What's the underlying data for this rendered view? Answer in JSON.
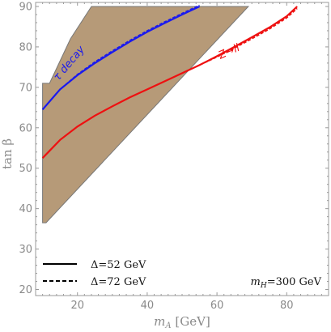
{
  "chart_data": {
    "type": "line",
    "title": "",
    "xlabel": "m_A [GeV]",
    "xlabel_main": "m",
    "xlabel_sub": "A",
    "xlabel_unit": " [GeV]",
    "ylabel": "tan β",
    "xlim": [
      8,
      92
    ],
    "ylim": [
      18.5,
      91
    ],
    "xticks": [
      20,
      40,
      60,
      80
    ],
    "yticks": [
      20,
      30,
      40,
      50,
      60,
      70,
      80,
      90
    ],
    "grid": false,
    "legend_position": "bottom-left",
    "colors": {
      "region_fill": "#b69a78",
      "region_edge": "#777777",
      "tau": "#1a1aee",
      "z": "#ee1111",
      "axis": "#999999"
    },
    "region": {
      "name": "",
      "points": [
        [
          10,
          71
        ],
        [
          12,
          71
        ],
        [
          18,
          82
        ],
        [
          24,
          90
        ],
        [
          69,
          90
        ],
        [
          11,
          36.5
        ],
        [
          10,
          36.5
        ]
      ]
    },
    "series": [
      {
        "color": "#1a1aee",
        "style": "solid",
        "x": [
          10,
          15,
          20,
          25,
          30,
          35,
          40,
          45,
          50,
          55
        ],
        "y": [
          64.5,
          69.5,
          73,
          76,
          78.7,
          81.3,
          83.7,
          85.9,
          88,
          90
        ]
      },
      {
        "color": "#1a1aee",
        "style": "dashed",
        "x": [
          10,
          15,
          20,
          25,
          30,
          35,
          40,
          45,
          50,
          55
        ],
        "y": [
          64.5,
          69.5,
          73.2,
          76.3,
          79,
          81.6,
          84,
          86.2,
          88.3,
          90.3
        ]
      },
      {
        "color": "#ee1111",
        "style": "solid",
        "x": [
          10,
          15,
          20,
          25,
          30,
          35,
          40,
          45,
          50,
          55,
          60,
          65,
          70,
          75,
          80,
          83
        ],
        "y": [
          52.5,
          57,
          60.3,
          63,
          65.3,
          67.5,
          69.5,
          71.5,
          73.5,
          75.5,
          77.7,
          80,
          82.4,
          84.8,
          87.6,
          90
        ]
      },
      {
        "color": "#ee1111",
        "style": "dashed",
        "x": [
          10,
          15,
          20,
          25,
          30,
          35,
          40,
          45,
          50,
          55,
          60,
          65,
          70,
          75,
          80,
          83
        ],
        "y": [
          52.5,
          57,
          60.3,
          63,
          65.3,
          67.5,
          69.5,
          71.5,
          73.5,
          75.5,
          77.5,
          79.7,
          82,
          84.4,
          87.2,
          89.5
        ]
      }
    ],
    "annotations": [
      {
        "text": "τ decay",
        "x": 14.5,
        "y": 71.5,
        "rotate": -50,
        "color": "#1a1aee"
      },
      {
        "text": "Z→ll",
        "x": 61,
        "y": 77,
        "rotate": -24,
        "color": "#ee1111"
      }
    ],
    "legend": [
      {
        "label": "Δ=52 GeV",
        "style": "solid"
      },
      {
        "label": "Δ=72 GeV",
        "style": "dashed"
      }
    ],
    "note": {
      "text_main": "m",
      "text_sub": "H",
      "text_rest": "=300 GeV"
    }
  }
}
